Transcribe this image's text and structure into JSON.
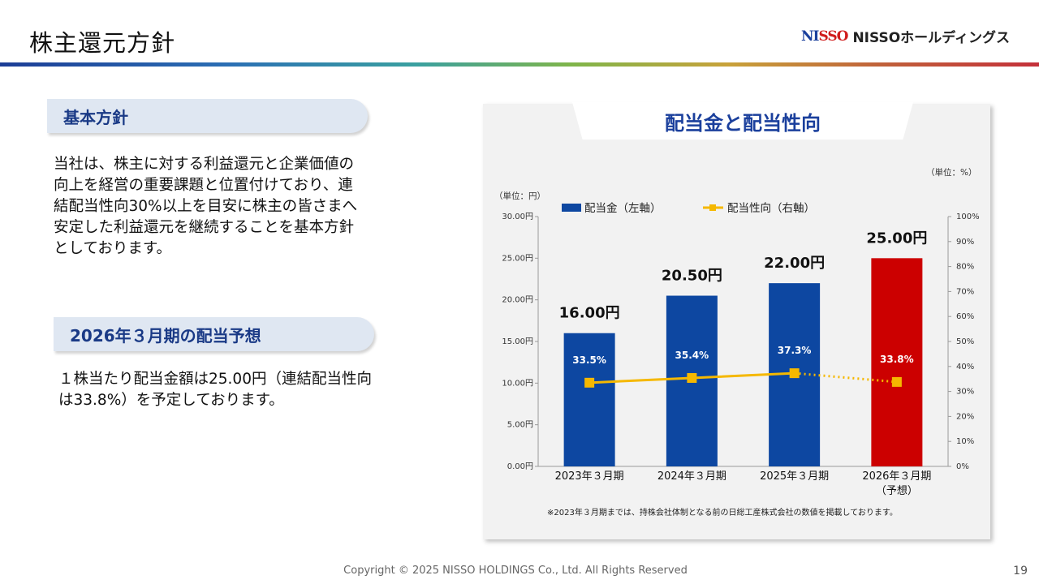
{
  "slide": {
    "title": "株主還元方針",
    "page_number": "19",
    "copyright": "Copyright © 2025 NISSO HOLDINGS Co., Ltd. All Rights Reserved"
  },
  "logo": {
    "mark_left": "NI",
    "mark_right": "SSO",
    "text": "NISSOホールディングス"
  },
  "sections": [
    {
      "heading": "基本方針",
      "lines": [
        "当社は、株主に対する利益還元と企業価値の",
        "向上を経営の重要課題と位置付けており、連",
        "結配当性向30%以上を目安に株主の皆さまへ",
        "安定した利益還元を継続することを基本方針",
        "としております。"
      ]
    },
    {
      "heading": "2026年３月期の配当予想",
      "lines": [
        "１株当たり配当金額は25.00円（連結配当性向",
        "は33.8%）を予定しております。"
      ]
    }
  ],
  "chart_data": {
    "type": "bar",
    "title": "配当金と配当性向",
    "left_unit": "（単位：円）",
    "right_unit": "（単位：%）",
    "categories": [
      "2023年３月期",
      "2024年３月期",
      "2025年３月期",
      "2026年３月期"
    ],
    "category_sublabels": [
      "",
      "",
      "",
      "（予想）"
    ],
    "left_ylim": [
      0,
      30
    ],
    "left_ticks": [
      "0.00円",
      "5.00円",
      "10.00円",
      "15.00円",
      "20.00円",
      "25.00円",
      "30.00円"
    ],
    "right_ylim": [
      0,
      100
    ],
    "right_ticks": [
      "0%",
      "10%",
      "20%",
      "30%",
      "40%",
      "50%",
      "60%",
      "70%",
      "80%",
      "90%",
      "100%"
    ],
    "series": [
      {
        "name": "配当金（左軸）",
        "axis": "left",
        "values": [
          16.0,
          20.5,
          22.0,
          25.0
        ],
        "labels": [
          "16.00円",
          "20.50円",
          "22.00円",
          "25.00円"
        ],
        "color": "#0d47a1",
        "forecast_color": "#cc0000"
      },
      {
        "name": "配当性向（右軸）",
        "axis": "right",
        "values": [
          33.5,
          35.4,
          37.3,
          33.8
        ],
        "labels": [
          "33.5%",
          "35.4%",
          "37.3%",
          "33.8%"
        ],
        "color": "#f5b800"
      }
    ],
    "forecast_index": 3,
    "legend_position": "top",
    "footnote": "※2023年３月期までは、持株会社体制となる前の日総工産株式会社の数値を掲載しております。"
  }
}
